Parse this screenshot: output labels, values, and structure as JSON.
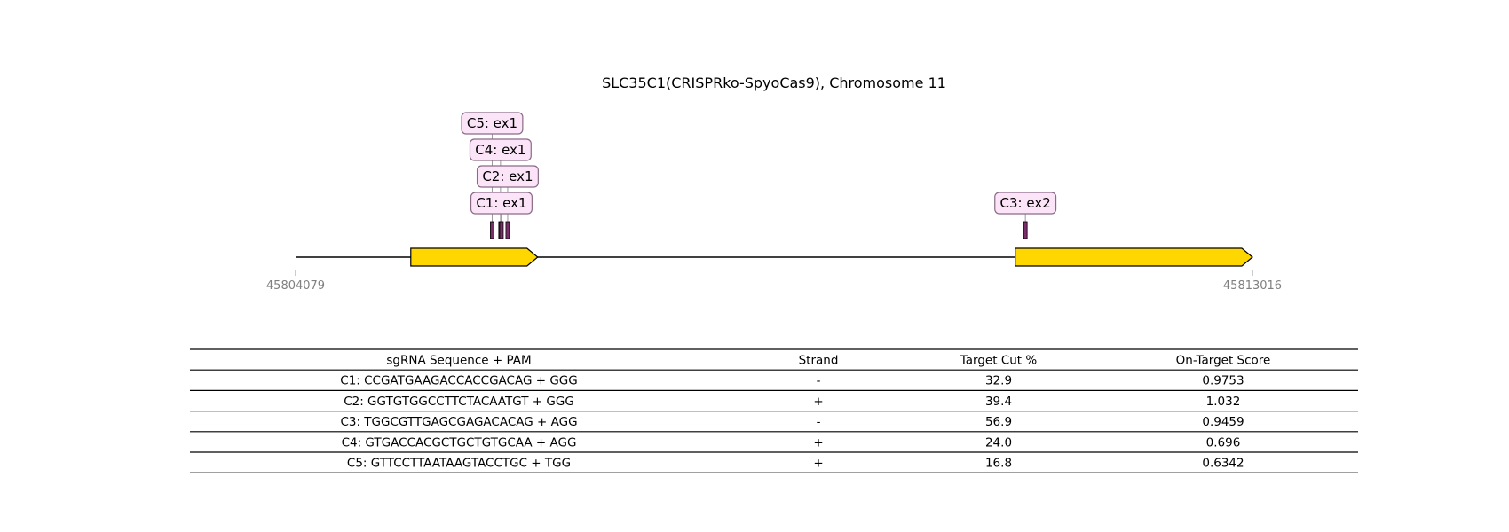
{
  "title": "SLC35C1(CRISPRko-SpyoCas9), Chromosome 11",
  "region": {
    "start": 45804079,
    "end": 45813016,
    "start_label": "45804079",
    "end_label": "45813016"
  },
  "exons": [
    {
      "name": "ex1",
      "start": 45805155,
      "end": 45806340,
      "strand": "+"
    },
    {
      "name": "ex2",
      "start": 45810800,
      "end": 45813016,
      "strand": "+"
    }
  ],
  "guides": [
    {
      "id": "C1",
      "label": "C1: ex1",
      "pos": 45806002,
      "tier": 1
    },
    {
      "id": "C2",
      "label": "C2: ex1",
      "pos": 45806060,
      "tier": 2
    },
    {
      "id": "C3",
      "label": "C3: ex2",
      "pos": 45810895,
      "tier": 1
    },
    {
      "id": "C4",
      "label": "C4: ex1",
      "pos": 45805993,
      "tier": 3
    },
    {
      "id": "C5",
      "label": "C5: ex1",
      "pos": 45805915,
      "tier": 4
    }
  ],
  "colors": {
    "exon_fill": "#FFD700",
    "exon_stroke": "#000000",
    "marker_fill": "#7B2D6B",
    "label_fill": "#FCE4F8",
    "label_stroke": "#8A6A86",
    "axis_text": "#808080"
  },
  "table": {
    "headers": [
      "sgRNA Sequence + PAM",
      "Strand",
      "Target Cut %",
      "On-Target Score"
    ],
    "rows": [
      [
        "C1: CCGATGAAGACCACCGACAG + GGG",
        "-",
        "32.9",
        "0.9753"
      ],
      [
        "C2: GGTGTGGCCTTCTACAATGT + GGG",
        "+",
        "39.4",
        "1.032"
      ],
      [
        "C3: TGGCGTTGAGCGAGACACAG + AGG",
        "-",
        "56.9",
        "0.9459"
      ],
      [
        "C4: GTGACCACGCTGCTGTGCAA + AGG",
        "+",
        "24.0",
        "0.696"
      ],
      [
        "C5: GTTCCTTAATAAGTACCTGC + TGG",
        "+",
        "16.8",
        "0.6342"
      ]
    ]
  }
}
